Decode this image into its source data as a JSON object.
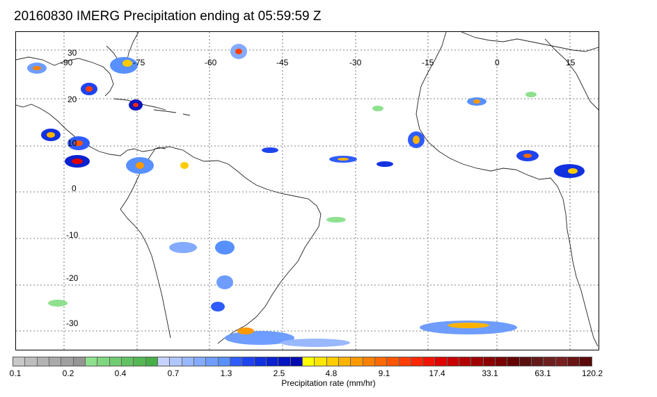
{
  "title": "20160830 IMERG Precipitation ending at 05:59:59 Z",
  "map": {
    "lon_labels": [
      "-90",
      "-75",
      "-60",
      "-45",
      "-30",
      "-15",
      "0",
      "15"
    ],
    "lat_labels": [
      "30",
      "20",
      "10",
      "0",
      "-10",
      "-20",
      "-30"
    ]
  },
  "colorbar": {
    "label": "Precipitation rate (mm/hr)",
    "tick_labels": [
      "0.1",
      "0.2",
      "0.4",
      "0.7",
      "1.3",
      "2.5",
      "4.8",
      "9.1",
      "17.4",
      "33.1",
      "63.1",
      "120.2"
    ],
    "colors": [
      "#c8c8c8",
      "#bdbdbd",
      "#b3b3b3",
      "#a9a9a9",
      "#9f9f9f",
      "#959595",
      "#8fe08f",
      "#7fd67f",
      "#70cc70",
      "#62c262",
      "#55b855",
      "#48ae48",
      "#c6d3ff",
      "#b0c6ff",
      "#9ab8ff",
      "#84abff",
      "#6e9dff",
      "#5890ff",
      "#2f5cff",
      "#1e44f0",
      "#1232e0",
      "#0a22d0",
      "#0616c0",
      "#020ab0",
      "#ffff00",
      "#ffe600",
      "#ffcc00",
      "#ffb300",
      "#ff9900",
      "#ff8000",
      "#ff6a00",
      "#ff5400",
      "#ff3e00",
      "#ff2800",
      "#f01400",
      "#e00000",
      "#c80000",
      "#b40000",
      "#a00000",
      "#8c0000",
      "#780000",
      "#640000",
      "#5a1010",
      "#641a1a",
      "#6e2020",
      "#782020",
      "#6a1414",
      "#5a0a0a"
    ]
  }
}
